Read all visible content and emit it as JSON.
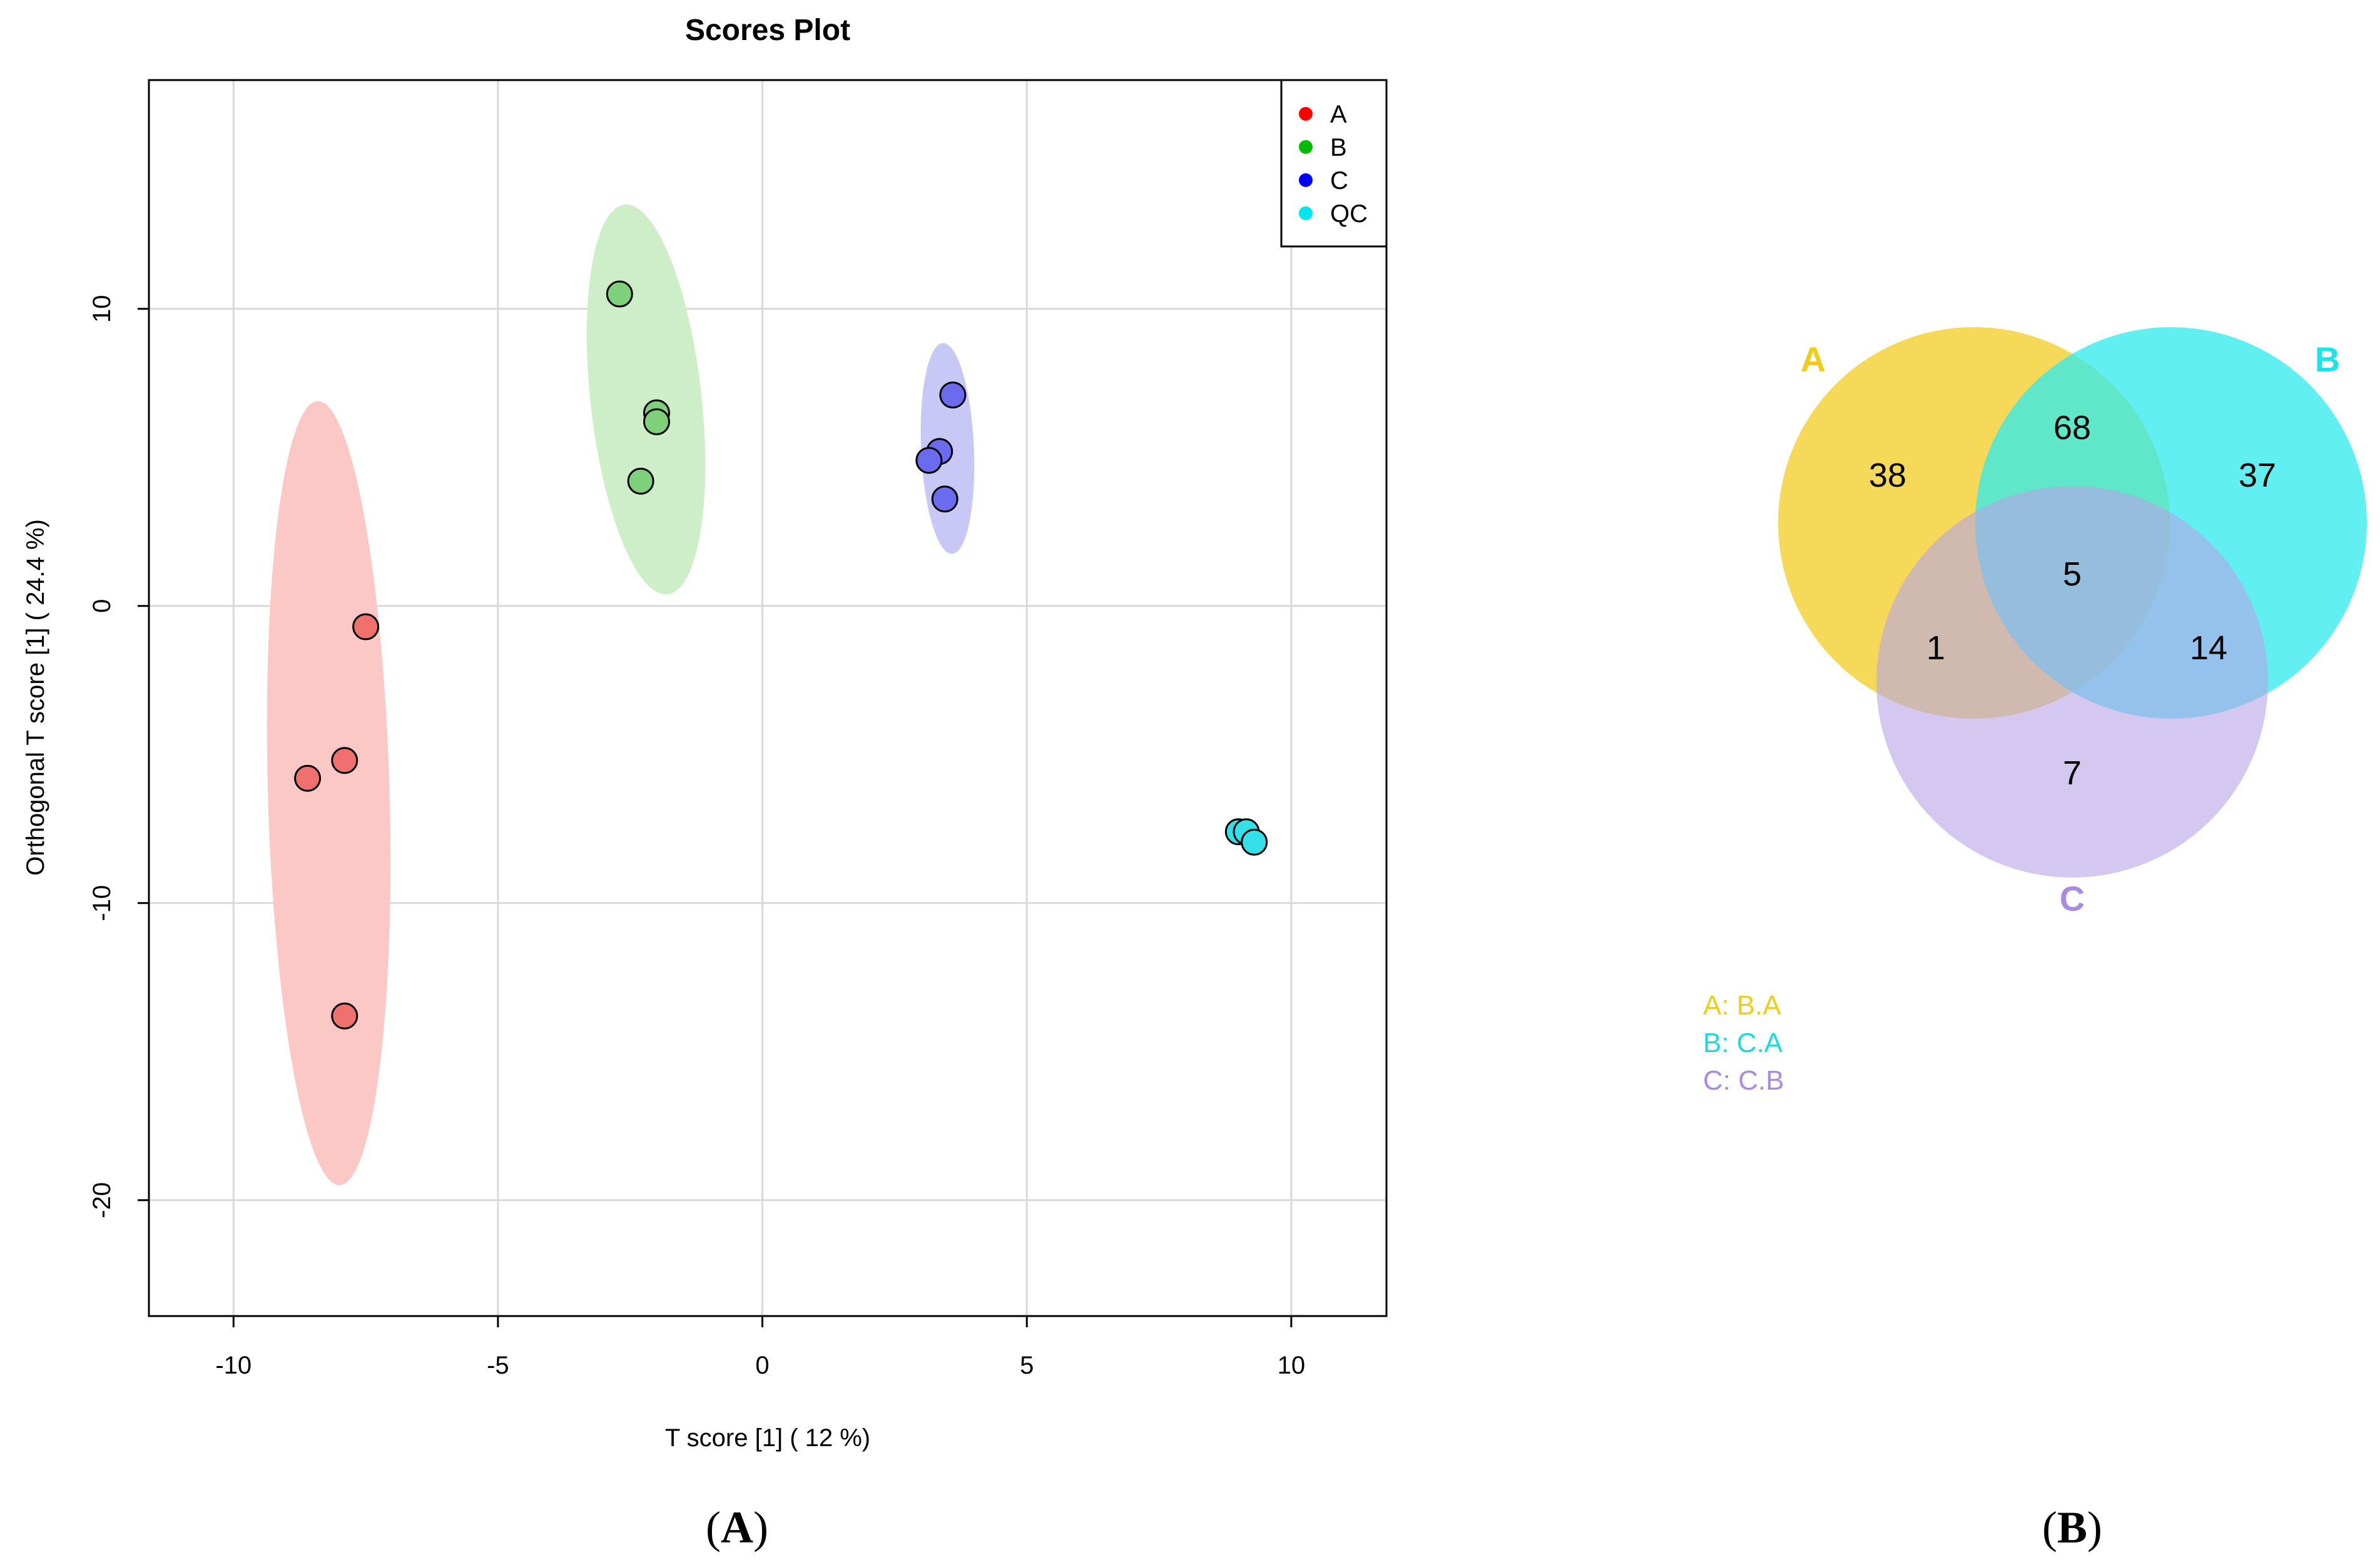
{
  "chart_data": [
    {
      "type": "scatter",
      "title": "Scores Plot",
      "xlabel": "T score [1] ( 12 %)",
      "ylabel": "Orthogonal T score [1] ( 24.4 %)",
      "xlim": [
        -11.6,
        11.8
      ],
      "ylim": [
        -23.9,
        17.7
      ],
      "xticks": [
        -10,
        -5,
        0,
        5,
        10
      ],
      "yticks": [
        10,
        0,
        -10,
        -20
      ],
      "xtick_labels": [
        "-10",
        "-5",
        "0",
        "5",
        "10"
      ],
      "ytick_labels": [
        "10",
        "0",
        "-10",
        "-20"
      ],
      "grid": true,
      "legend_position": "top-right",
      "series": [
        {
          "name": "A",
          "color": "#ff0000",
          "fill": "#f0706d",
          "ellipse_fill": "#fbc8c5",
          "points": [
            [
              -7.5,
              -0.7
            ],
            [
              -7.9,
              -5.2
            ],
            [
              -8.6,
              -5.8
            ],
            [
              -7.9,
              -13.8
            ]
          ],
          "ellipse": {
            "cx": -8.2,
            "cy": -6.3,
            "rx": 1.15,
            "ry": 13.2,
            "angle_deg": -1.6
          }
        },
        {
          "name": "B",
          "color": "#00bb00",
          "fill": "#7ed07a",
          "ellipse_fill": "#cdeec6",
          "points": [
            [
              -2.7,
              10.5
            ],
            [
              -2.0,
              6.5
            ],
            [
              -2.0,
              6.2
            ],
            [
              -2.3,
              4.2
            ]
          ],
          "ellipse": {
            "cx": -2.2,
            "cy": 6.95,
            "rx": 1.05,
            "ry": 6.6,
            "angle_deg": -6.3
          }
        },
        {
          "name": "C",
          "color": "#0000ff",
          "fill": "#6b6bf0",
          "ellipse_fill": "#c8c8f6",
          "points": [
            [
              3.6,
              7.1
            ],
            [
              3.35,
              5.2
            ],
            [
              3.15,
              4.9
            ],
            [
              3.45,
              3.6
            ]
          ],
          "ellipse": {
            "cx": 3.5,
            "cy": 5.3,
            "rx": 0.5,
            "ry": 3.55,
            "angle_deg": -2.5
          }
        },
        {
          "name": "QC",
          "color": "#00e5ee",
          "fill": "#33e0e8",
          "ellipse_fill": "#bff5f7",
          "points": [
            [
              9.0,
              -7.6
            ],
            [
              9.15,
              -7.6
            ],
            [
              9.3,
              -7.95
            ]
          ]
        }
      ]
    },
    {
      "type": "venn",
      "sets": [
        {
          "name": "A",
          "color": "#f4d23c",
          "label_color": "#f0cc1e",
          "legend": "A: B.A",
          "legend_color": "#f0cc1e"
        },
        {
          "name": "B",
          "color": "#2ee9ee",
          "label_color": "#1fe3ea",
          "legend": "B: C.A",
          "legend_color": "#1fd8e0"
        },
        {
          "name": "C",
          "color": "#b8a3e8",
          "label_color": "#a98be3",
          "legend": "C: C.B",
          "legend_color": "#a98be3"
        }
      ],
      "regions": {
        "A_only": "38",
        "A_B": "68",
        "B_only": "37",
        "A_B_C": "5",
        "A_C": "1",
        "B_C": "14",
        "C_only": "7"
      }
    }
  ],
  "panel_labels": {
    "left": {
      "open": "(",
      "letter": "A",
      "close": ")"
    },
    "right": {
      "open": "(",
      "letter": "B",
      "close": ")"
    }
  }
}
